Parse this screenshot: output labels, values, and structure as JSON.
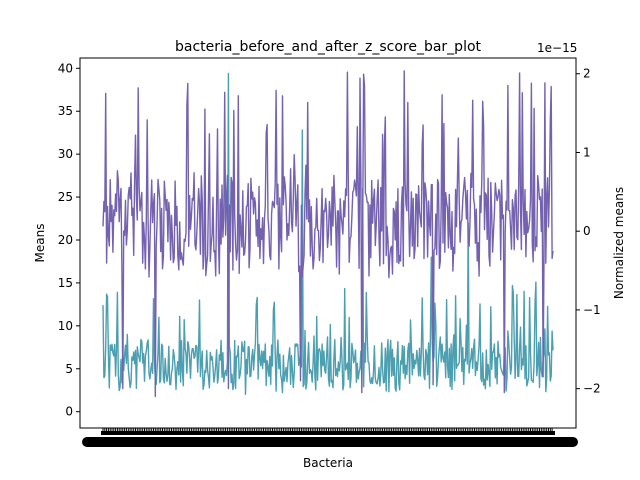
{
  "chart_data": {
    "type": "line",
    "title": "bacteria_before_and_after_z_score_bar_plot",
    "xlabel": "Bacteria",
    "ylabel_left": "Means",
    "ylabel_right": "Normalized means",
    "right_axis_offset_text": "1e−15",
    "left_ylim": [
      -1.9,
      41.2
    ],
    "right_ylim": [
      -2.5,
      2.2
    ],
    "left_yticks": [
      0,
      5,
      10,
      15,
      20,
      25,
      30,
      35,
      40
    ],
    "right_yticks": [
      -2,
      -1,
      0,
      1,
      2
    ],
    "right_ytick_labels": [
      "−2",
      "−1",
      "0",
      "1",
      "2"
    ],
    "x_count": 500,
    "x_tick_labels_note": "dense overlapping category labels, illegible",
    "grid": false,
    "series": [
      {
        "axis": "left",
        "color": "#4c9fb0",
        "n": 500,
        "typical_range": [
          2,
          9
        ],
        "spikes": [
          [
            27,
            9
          ],
          [
            62,
            11
          ],
          [
            107,
            13
          ],
          [
            139,
            39.4
          ],
          [
            221,
            32.8
          ],
          [
            288,
            26
          ],
          [
            364,
            18
          ],
          [
            405,
            22
          ],
          [
            467,
            14
          ]
        ]
      },
      {
        "axis": "right",
        "color": "#7462b0",
        "n": 500,
        "typical_range": [
          -0.6,
          0.8
        ],
        "peaks": [
          [
            3,
            1.75
          ],
          [
            39,
            1.82
          ],
          [
            93,
            1.6
          ],
          [
            127,
            1.3
          ],
          [
            181,
            1.25
          ],
          [
            199,
            1.72
          ],
          [
            271,
            2.02
          ],
          [
            313,
            1.45
          ],
          [
            355,
            1.35
          ],
          [
            421,
            1.65
          ],
          [
            475,
            1.88
          ],
          [
            496,
            1.4
          ]
        ],
        "troughs": [
          [
            22,
            -2.0
          ],
          [
            58,
            -2.1
          ],
          [
            139,
            -2.0
          ],
          [
            219,
            -1.9
          ],
          [
            287,
            -2.05
          ],
          [
            366,
            -1.95
          ],
          [
            445,
            -2.05
          ],
          [
            488,
            -1.85
          ]
        ]
      }
    ]
  },
  "colors": {
    "left_series": "#4c9fb0",
    "right_series": "#7462b0",
    "left_axis_label": "#4c9fb0",
    "right_axis_label": "#7462b0"
  }
}
